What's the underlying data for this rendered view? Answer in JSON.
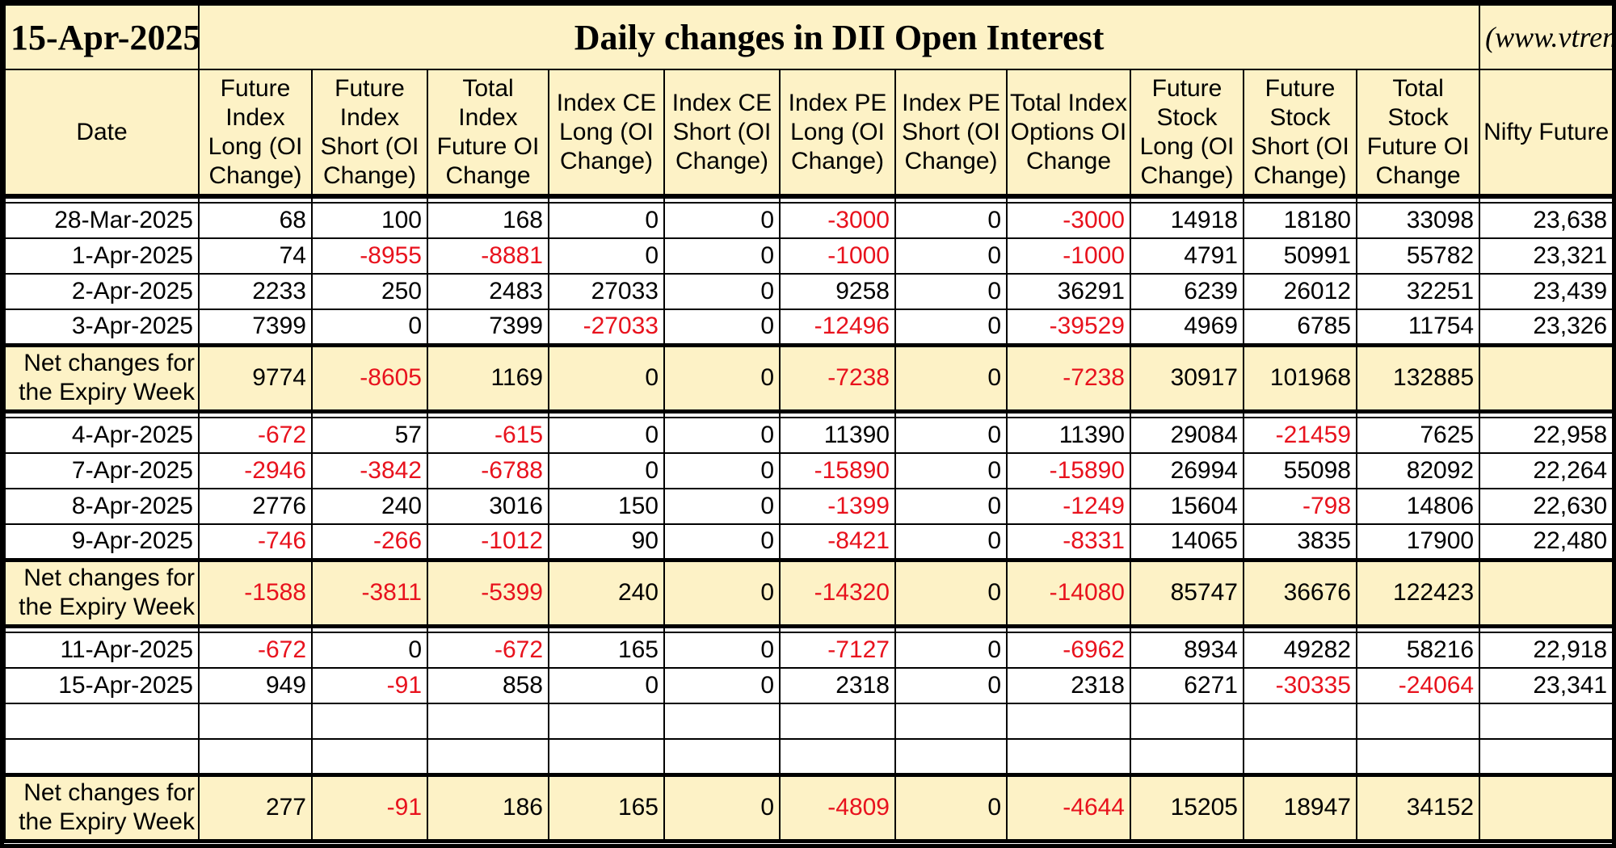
{
  "title_date": "15-Apr-2025",
  "title": "Daily changes in DII Open Interest",
  "website": "(www.vtrender.com)",
  "headers": [
    "Date",
    "Future Index Long (OI Change)",
    "Future Index Short (OI Change)",
    "Total Index Future OI Change",
    "Index CE Long (OI Change)",
    "Index CE Short (OI Change)",
    "Index PE Long (OI Change)",
    "Index PE Short (OI Change)",
    "Total Index Options OI Change",
    "Future Stock Long (OI Change)",
    "Future Stock Short (OI Change)",
    "Total Stock Future OI Change",
    "Nifty Future"
  ],
  "colors": {
    "negative": "#e8121d",
    "header_bg": "#fdf2c6"
  },
  "groups": [
    {
      "rows": [
        [
          "28-Mar-2025",
          "68",
          "100",
          "168",
          "0",
          "0",
          "-3000",
          "0",
          "-3000",
          "14918",
          "18180",
          "33098",
          "23,638"
        ],
        [
          "1-Apr-2025",
          "74",
          "-8955",
          "-8881",
          "0",
          "0",
          "-1000",
          "0",
          "-1000",
          "4791",
          "50991",
          "55782",
          "23,321"
        ],
        [
          "2-Apr-2025",
          "2233",
          "250",
          "2483",
          "27033",
          "0",
          "9258",
          "0",
          "36291",
          "6239",
          "26012",
          "32251",
          "23,439"
        ],
        [
          "3-Apr-2025",
          "7399",
          "0",
          "7399",
          "-27033",
          "0",
          "-12496",
          "0",
          "-39529",
          "4969",
          "6785",
          "11754",
          "23,326"
        ]
      ],
      "empty_rows": 0,
      "summary": [
        "Net changes for the Expiry Week",
        "9774",
        "-8605",
        "1169",
        "0",
        "0",
        "-7238",
        "0",
        "-7238",
        "30917",
        "101968",
        "132885",
        ""
      ]
    },
    {
      "rows": [
        [
          "4-Apr-2025",
          "-672",
          "57",
          "-615",
          "0",
          "0",
          "11390",
          "0",
          "11390",
          "29084",
          "-21459",
          "7625",
          "22,958"
        ],
        [
          "7-Apr-2025",
          "-2946",
          "-3842",
          "-6788",
          "0",
          "0",
          "-15890",
          "0",
          "-15890",
          "26994",
          "55098",
          "82092",
          "22,264"
        ],
        [
          "8-Apr-2025",
          "2776",
          "240",
          "3016",
          "150",
          "0",
          "-1399",
          "0",
          "-1249",
          "15604",
          "-798",
          "14806",
          "22,630"
        ],
        [
          "9-Apr-2025",
          "-746",
          "-266",
          "-1012",
          "90",
          "0",
          "-8421",
          "0",
          "-8331",
          "14065",
          "3835",
          "17900",
          "22,480"
        ]
      ],
      "empty_rows": 0,
      "summary": [
        "Net changes for the Expiry Week",
        "-1588",
        "-3811",
        "-5399",
        "240",
        "0",
        "-14320",
        "0",
        "-14080",
        "85747",
        "36676",
        "122423",
        ""
      ]
    },
    {
      "rows": [
        [
          "11-Apr-2025",
          "-672",
          "0",
          "-672",
          "165",
          "0",
          "-7127",
          "0",
          "-6962",
          "8934",
          "49282",
          "58216",
          "22,918"
        ],
        [
          "15-Apr-2025",
          "949",
          "-91",
          "858",
          "0",
          "0",
          "2318",
          "0",
          "2318",
          "6271",
          "-30335",
          "-24064",
          "23,341"
        ]
      ],
      "empty_rows": 2,
      "summary": [
        "Net changes for the Expiry Week",
        "277",
        "-91",
        "186",
        "165",
        "0",
        "-4809",
        "0",
        "-4644",
        "15205",
        "18947",
        "34152",
        ""
      ]
    }
  ]
}
